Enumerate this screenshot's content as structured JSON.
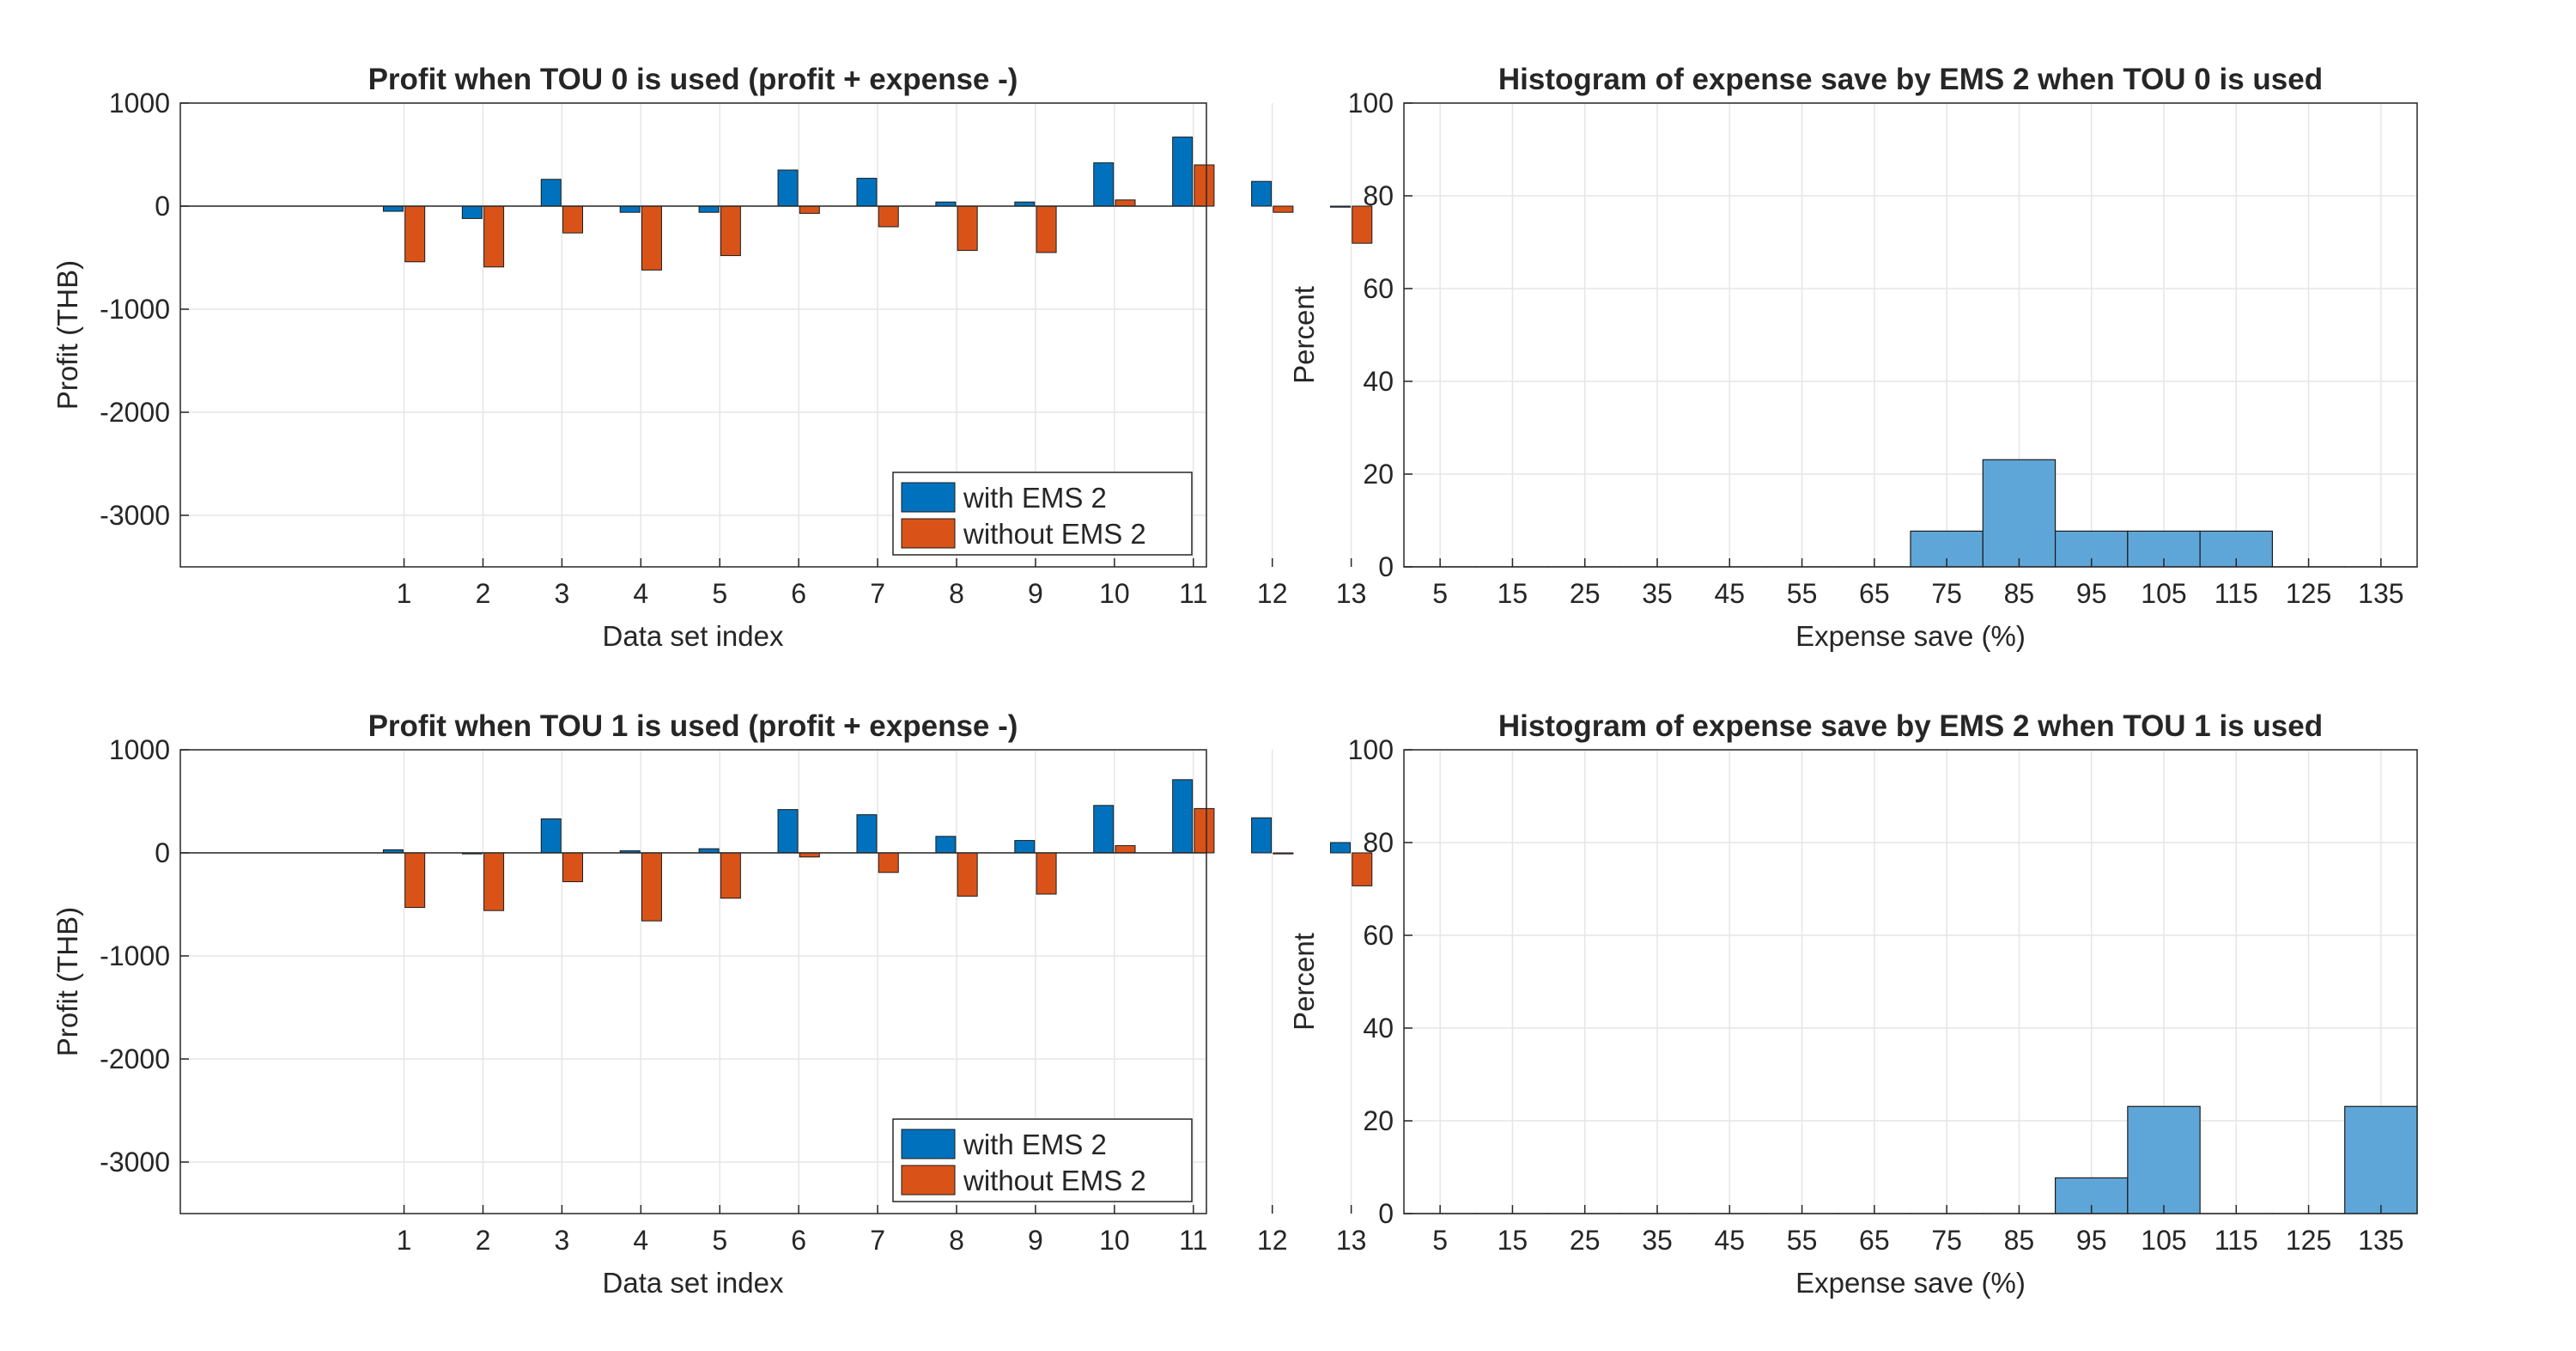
{
  "colors": {
    "with_ems": "#0072BD",
    "without_ems": "#D95319",
    "histogram": "#5FA6D8",
    "grid": "#e6e6e6",
    "axis": "#262626"
  },
  "chart_data": [
    {
      "type": "bar",
      "title": "Profit when TOU 0 is used (profit + expense -)",
      "xlabel": "Data set index",
      "ylabel": "Profit (THB)",
      "categories": [
        "1",
        "2",
        "3",
        "4",
        "5",
        "6",
        "7",
        "8",
        "9",
        "10",
        "11",
        "12",
        "13"
      ],
      "series": [
        {
          "name": "with EMS 2",
          "values": [
            -50,
            -120,
            260,
            -60,
            -60,
            350,
            270,
            40,
            40,
            420,
            670,
            240,
            -10
          ]
        },
        {
          "name": "without EMS 2",
          "values": [
            -540,
            -590,
            -260,
            -620,
            -480,
            -70,
            -200,
            -430,
            -450,
            60,
            400,
            -60,
            -360
          ]
        }
      ],
      "ylim": [
        -3500,
        1000
      ],
      "yticks": [
        1000,
        0,
        -1000,
        -2000,
        -3000
      ],
      "legend_position": "bottom-right",
      "grid": true
    },
    {
      "type": "bar",
      "title": "Histogram of expense save by EMS 2 when TOU 0 is used",
      "xlabel": "Expense save (%)",
      "ylabel": "Percent",
      "categories": [
        "5",
        "15",
        "25",
        "35",
        "45",
        "55",
        "65",
        "75",
        "85",
        "95",
        "105",
        "115",
        "125",
        "135"
      ],
      "values": [
        0,
        0,
        0,
        0,
        0,
        0,
        0,
        7.7,
        23.1,
        7.7,
        7.7,
        7.7,
        0,
        0
      ],
      "bin_width": 10,
      "xlim": [
        0,
        140
      ],
      "ylim": [
        0,
        100
      ],
      "yticks": [
        0,
        20,
        40,
        60,
        80,
        100
      ],
      "grid": true
    },
    {
      "type": "bar",
      "title": "Profit when TOU 1 is used (profit + expense -)",
      "xlabel": "Data set index",
      "ylabel": "Profit (THB)",
      "categories": [
        "1",
        "2",
        "3",
        "4",
        "5",
        "6",
        "7",
        "8",
        "9",
        "10",
        "11",
        "12",
        "13"
      ],
      "series": [
        {
          "name": "with EMS 2",
          "values": [
            30,
            -10,
            330,
            20,
            40,
            420,
            370,
            160,
            120,
            460,
            710,
            340,
            100
          ]
        },
        {
          "name": "without EMS 2",
          "values": [
            -530,
            -560,
            -280,
            -660,
            -440,
            -40,
            -190,
            -420,
            -400,
            70,
            430,
            -10,
            -320
          ]
        }
      ],
      "ylim": [
        -3500,
        1000
      ],
      "yticks": [
        1000,
        0,
        -1000,
        -2000,
        -3000
      ],
      "legend_position": "bottom-right",
      "grid": true
    },
    {
      "type": "bar",
      "title": "Histogram of expense save by EMS 2 when TOU 1 is used",
      "xlabel": "Expense save (%)",
      "ylabel": "Percent",
      "categories": [
        "5",
        "15",
        "25",
        "35",
        "45",
        "55",
        "65",
        "75",
        "85",
        "95",
        "105",
        "115",
        "125",
        "135"
      ],
      "values": [
        0,
        0,
        0,
        0,
        0,
        0,
        0,
        0,
        0,
        7.7,
        23.1,
        0,
        0,
        23.1
      ],
      "bin_width": 10,
      "xlim": [
        0,
        140
      ],
      "ylim": [
        0,
        100
      ],
      "yticks": [
        0,
        20,
        40,
        60,
        80,
        100
      ],
      "grid": true
    }
  ]
}
